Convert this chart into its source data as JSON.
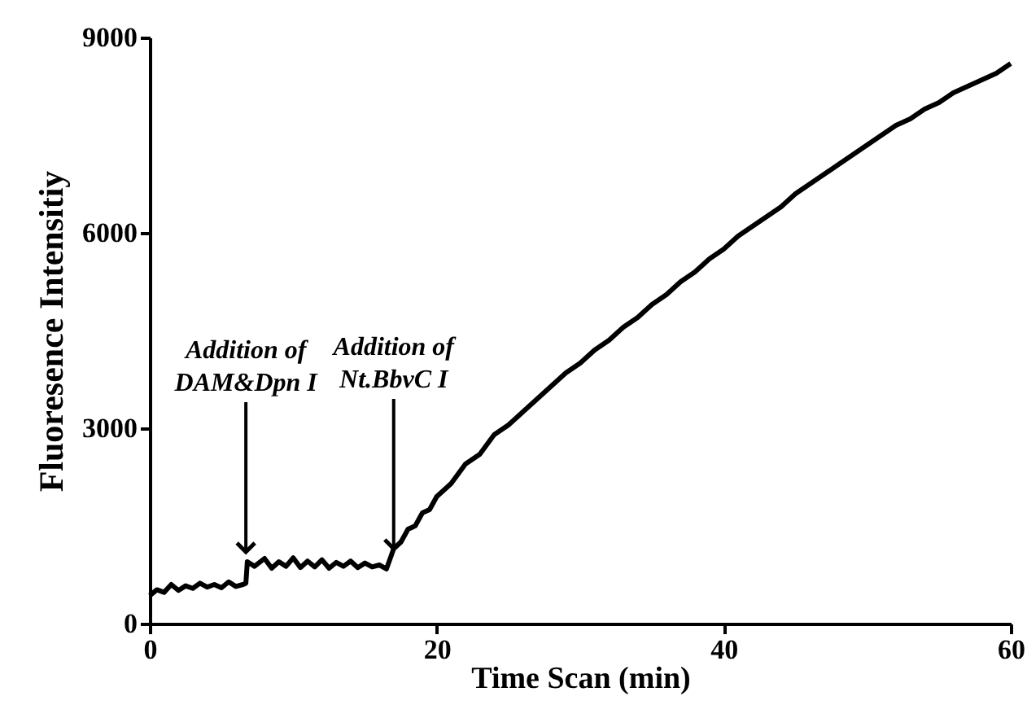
{
  "chart_data": {
    "type": "line",
    "xlabel": "Time Scan (min)",
    "ylabel": "Fluoresence Intensitiy",
    "xlim": [
      0,
      60
    ],
    "xticks": [
      0,
      20,
      40,
      60
    ],
    "ylim": [
      0,
      9000
    ],
    "yticks": [
      0,
      3000,
      6000,
      9000
    ],
    "grid": false,
    "marker": "none",
    "line_style": "solid",
    "x": [
      0,
      0.5,
      1,
      1.5,
      2,
      2.5,
      3,
      3.5,
      4,
      4.5,
      5,
      5.5,
      6,
      6.5,
      6.7,
      6.8,
      7.3,
      8,
      8.5,
      9,
      9.5,
      10,
      10.5,
      11,
      11.5,
      12,
      12.5,
      13,
      13.5,
      14,
      14.5,
      15,
      15.5,
      16,
      16.5,
      17,
      17.5,
      18,
      18.5,
      19,
      19.5,
      20,
      21,
      22,
      23,
      24,
      25,
      26,
      27,
      28,
      29,
      30,
      31,
      32,
      33,
      34,
      35,
      36,
      37,
      38,
      39,
      40,
      41,
      42,
      43,
      44,
      45,
      46,
      47,
      48,
      49,
      50,
      51,
      52,
      53,
      54,
      55,
      56,
      57,
      58,
      59,
      60
    ],
    "series": [
      {
        "color": "#000000",
        "values": [
          430,
          520,
          480,
          600,
          510,
          580,
          540,
          620,
          560,
          600,
          550,
          640,
          570,
          600,
          620,
          950,
          880,
          1000,
          850,
          950,
          880,
          1010,
          860,
          960,
          870,
          980,
          850,
          940,
          880,
          960,
          860,
          930,
          870,
          900,
          840,
          1150,
          1250,
          1450,
          1500,
          1700,
          1750,
          1950,
          2150,
          2450,
          2600,
          2900,
          3050,
          3250,
          3450,
          3650,
          3850,
          4000,
          4200,
          4350,
          4550,
          4700,
          4900,
          5050,
          5250,
          5400,
          5600,
          5750,
          5950,
          6100,
          6250,
          6400,
          6600,
          6750,
          6900,
          7050,
          7200,
          7350,
          7500,
          7650,
          7750,
          7900,
          8000,
          8150,
          8250,
          8350,
          8450,
          8600
        ]
      }
    ],
    "annotations": [
      {
        "text": "Addition of\nDAM&Dpn I",
        "x": 6.7,
        "y": 1100
      },
      {
        "text": "Addition of\nNt.BbvC I",
        "x": 17,
        "y": 1150
      }
    ]
  }
}
